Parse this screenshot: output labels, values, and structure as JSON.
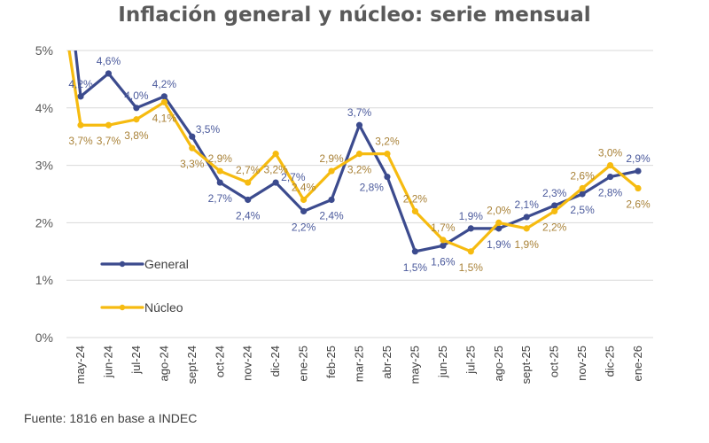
{
  "chart_data": {
    "type": "line",
    "title": "Inflación general y núcleo: serie mensual",
    "xlabel": "",
    "ylabel": "",
    "ylim": [
      0,
      5
    ],
    "yticks": [
      "0%",
      "1%",
      "2%",
      "3%",
      "4%",
      "5%"
    ],
    "ytick_values": [
      0,
      1,
      2,
      3,
      4,
      5
    ],
    "grid": true,
    "legend_position": "left-bottom",
    "categories": [
      "may-24",
      "jun-24",
      "jul-24",
      "ago-24",
      "sept-24",
      "oct-24",
      "nov-24",
      "dic-24",
      "ene-25",
      "feb-25",
      "mar-25",
      "abr-25",
      "may-25",
      "jun-25",
      "jul-25",
      "ago-25",
      "sept-25",
      "oct-25",
      "nov-25",
      "dic-25",
      "ene-26"
    ],
    "series": [
      {
        "name": "General",
        "color": "#3c4b8e",
        "label_color": "#4b5a9c",
        "values": [
          4.2,
          4.6,
          4.0,
          4.2,
          3.5,
          2.7,
          2.4,
          2.7,
          2.2,
          2.4,
          3.7,
          2.8,
          1.5,
          1.6,
          1.9,
          1.9,
          2.1,
          2.3,
          2.5,
          2.8,
          2.9
        ],
        "labels": [
          "4,2%",
          "4,6%",
          "4,0%",
          "4,2%",
          "3,5%",
          "2,7%",
          "2,4%",
          "2,7%",
          "2,2%",
          "2,4%",
          "3,7%",
          "2,8%",
          "1,5%",
          "1,6%",
          "1,9%",
          "1,9%",
          "2,1%",
          "2,3%",
          "2,5%",
          "2,8%",
          "2,9%"
        ],
        "label_pos": [
          "above",
          "above",
          "above",
          "above",
          "right",
          "below",
          "below",
          "above-right",
          "below",
          "below",
          "above",
          "left",
          "below",
          "below",
          "above",
          "below",
          "above",
          "above",
          "below",
          "below",
          "above"
        ]
      },
      {
        "name": "Núcleo",
        "color": "#f6bb10",
        "label_color": "#a98238",
        "values": [
          3.7,
          3.7,
          3.8,
          4.1,
          3.3,
          2.9,
          2.7,
          3.2,
          2.4,
          2.9,
          3.2,
          3.2,
          2.2,
          1.7,
          1.5,
          2.0,
          1.9,
          2.2,
          2.6,
          3.0,
          2.6
        ],
        "labels": [
          "3,7%",
          "3,7%",
          "3,8%",
          "4,1%",
          "3,3%",
          "2,9%",
          "2,7%",
          "3,2%",
          "2,4%",
          "2,9%",
          "3,2%",
          "3,2%",
          "2,2%",
          "1,7%",
          "1,5%",
          "2,0%",
          "1,9%",
          "2,2%",
          "2,6%",
          "3,0%",
          "2,6%"
        ],
        "label_pos": [
          "below",
          "below",
          "below",
          "below",
          "below",
          "above",
          "above",
          "below",
          "above",
          "above",
          "below",
          "above",
          "above",
          "above",
          "below",
          "above",
          "below",
          "below",
          "above",
          "above",
          "below"
        ]
      }
    ],
    "annotations": []
  },
  "source": "Fuente: 1816 en base a INDEC"
}
